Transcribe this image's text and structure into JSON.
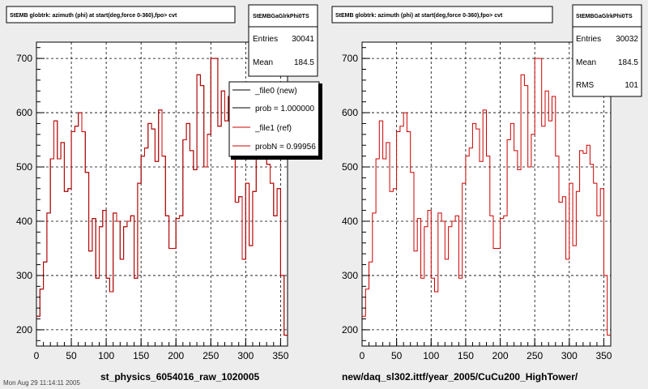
{
  "footer_text": "Mon Aug 29 11:14:11 2005",
  "legend": {
    "entries": [
      {
        "text": "_file0 (new)",
        "color": "#000000"
      },
      {
        "text": "prob = 1.000000",
        "color": "#000000"
      },
      {
        "text": "_file1 (ref)",
        "color": "#cc0000"
      },
      {
        "text": "probN = 0.99956",
        "color": "#cc0000"
      }
    ]
  },
  "chart_data": [
    {
      "type": "line",
      "title": "StEMB globtrk: azimuth (phi) at start(deg,force 0-360),fpo> cvt",
      "caption": "st_physics_6054016_raw_1020005",
      "xlim": [
        0,
        360
      ],
      "ylim": [
        170,
        730
      ],
      "x_ticks": [
        0,
        50,
        100,
        150,
        200,
        250,
        300,
        350
      ],
      "y_ticks": [
        200,
        300,
        400,
        500,
        600,
        700
      ],
      "grid": true,
      "stats": {
        "name": "StEMBGaGlrkPhi0TS",
        "rows": [
          {
            "label": "Entries",
            "value": "30041"
          },
          {
            "label": "Mean",
            "value": "184.5"
          }
        ]
      },
      "bin_width": 5,
      "series": [
        {
          "name": "_file0 (new)",
          "color": "#000000",
          "values": [
            225,
            275,
            325,
            415,
            515,
            585,
            515,
            545,
            455,
            460,
            565,
            575,
            600,
            565,
            490,
            345,
            405,
            295,
            390,
            420,
            295,
            270,
            415,
            400,
            330,
            390,
            400,
            410,
            295,
            470,
            520,
            535,
            580,
            570,
            510,
            605,
            520,
            410,
            350,
            350,
            405,
            410,
            550,
            580,
            530,
            495,
            670,
            650,
            500,
            560,
            700,
            700,
            575,
            640,
            585,
            630,
            520,
            435,
            445,
            330,
            470,
            355,
            455,
            530,
            525,
            540,
            505,
            470,
            410,
            460,
            300,
            190
          ]
        },
        {
          "name": "_file1 (ref)",
          "color": "#cc0000",
          "values": [
            225,
            275,
            325,
            415,
            515,
            585,
            515,
            545,
            455,
            460,
            565,
            575,
            600,
            565,
            490,
            345,
            405,
            295,
            390,
            420,
            295,
            270,
            415,
            400,
            330,
            390,
            400,
            410,
            295,
            470,
            520,
            535,
            580,
            570,
            510,
            605,
            520,
            410,
            350,
            350,
            405,
            410,
            550,
            580,
            530,
            495,
            670,
            650,
            500,
            560,
            700,
            700,
            575,
            640,
            585,
            630,
            520,
            435,
            445,
            330,
            470,
            355,
            455,
            530,
            525,
            540,
            505,
            470,
            410,
            460,
            300,
            190
          ]
        }
      ]
    },
    {
      "type": "line",
      "title": "StEMB globtrk: azimuth (phi) at start(deg,force 0-360),fpo> cvt",
      "caption": "new/daq_sl302.ittf/year_2005/CuCu200_HighTower/",
      "xlim": [
        0,
        360
      ],
      "ylim": [
        170,
        730
      ],
      "x_ticks": [
        0,
        50,
        100,
        150,
        200,
        250,
        300,
        350
      ],
      "y_ticks": [
        200,
        300,
        400,
        500,
        600,
        700
      ],
      "grid": true,
      "stats": {
        "name": "StEMBGaGlrkPhi0TS",
        "rows": [
          {
            "label": "Entries",
            "value": "30032"
          },
          {
            "label": "Mean",
            "value": "184.5"
          },
          {
            "label": "RMS",
            "value": "101"
          }
        ]
      },
      "bin_width": 5,
      "series": [
        {
          "name": "",
          "color": "#cc0000",
          "values": [
            225,
            275,
            325,
            415,
            515,
            585,
            515,
            545,
            455,
            460,
            565,
            575,
            600,
            565,
            490,
            345,
            405,
            295,
            390,
            420,
            295,
            270,
            415,
            400,
            330,
            390,
            400,
            410,
            295,
            470,
            520,
            535,
            580,
            570,
            510,
            605,
            520,
            410,
            350,
            350,
            405,
            410,
            550,
            580,
            530,
            495,
            670,
            650,
            500,
            560,
            700,
            700,
            575,
            640,
            585,
            630,
            520,
            435,
            445,
            330,
            470,
            355,
            455,
            530,
            525,
            540,
            505,
            470,
            410,
            460,
            300,
            190
          ]
        }
      ]
    }
  ]
}
